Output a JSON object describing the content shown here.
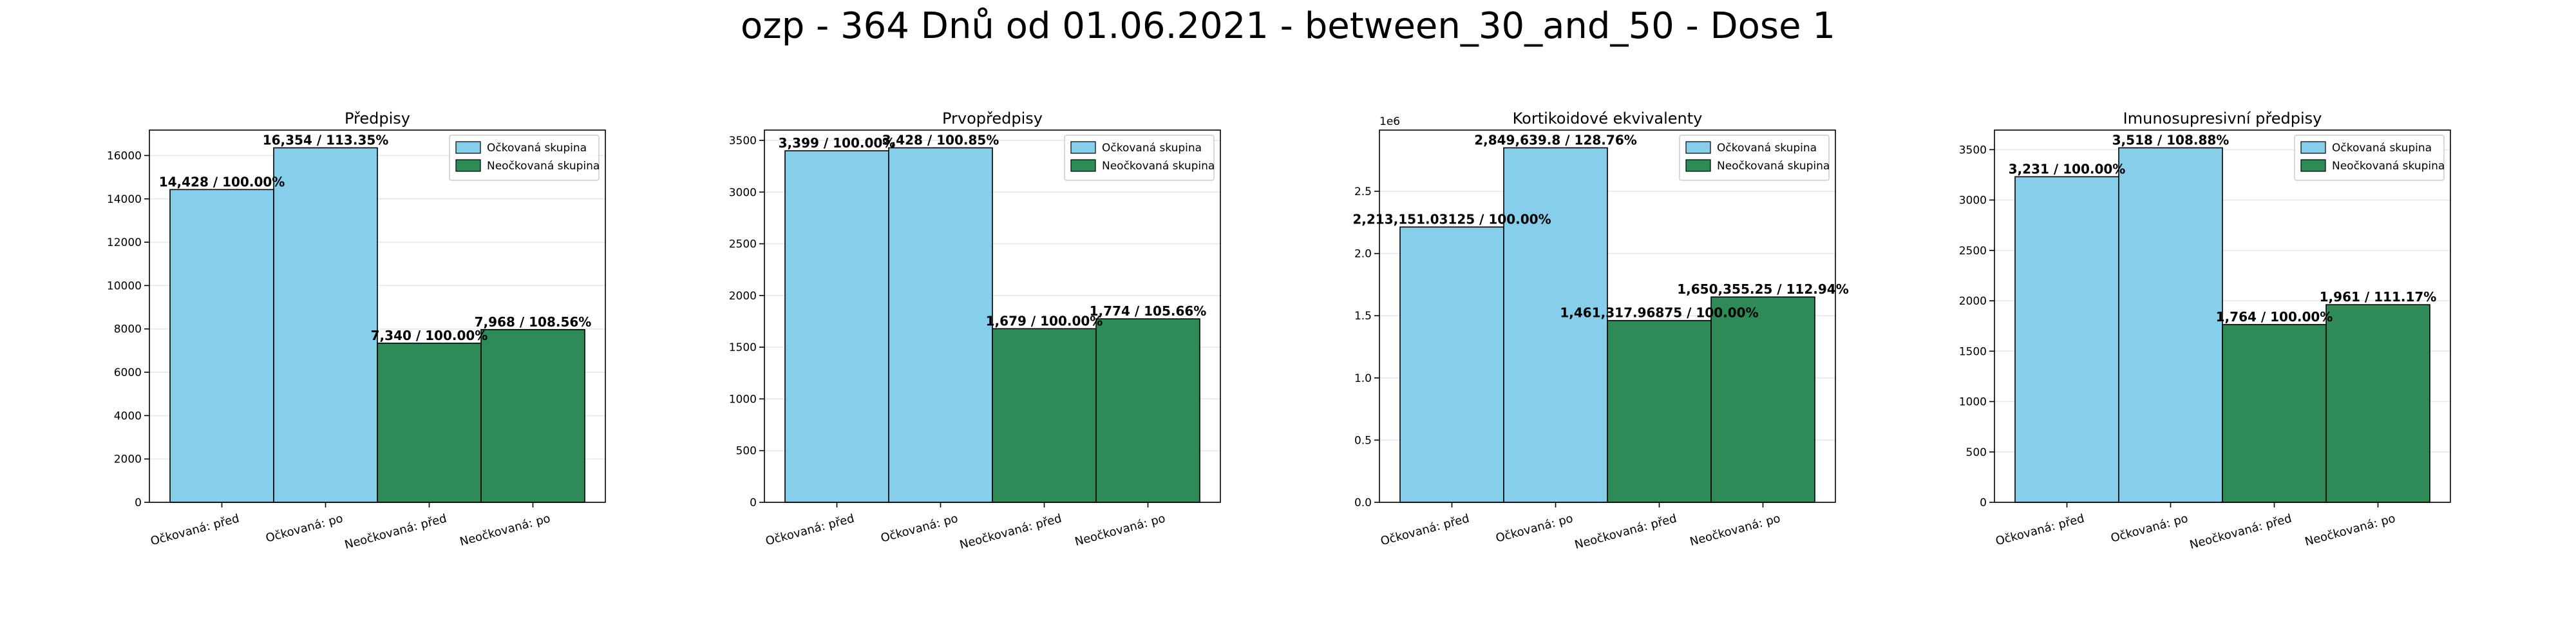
{
  "figure": {
    "title": "ozp - 364 Dnů od 01.06.2021 - between_30_and_50 - Dose 1"
  },
  "legend": {
    "items": [
      {
        "label": "Očkovaná skupina",
        "color": "#87CEEB"
      },
      {
        "label": "Neočkovaná skupina",
        "color": "#2E8B57"
      }
    ],
    "placement": "top-right"
  },
  "chart_data": [
    {
      "type": "bar",
      "title": "Předpisy",
      "categories": [
        "Očkovaná: před",
        "Očkovaná: po",
        "Neočkovaná: před",
        "Neočkovaná: po"
      ],
      "values": [
        14428,
        16354,
        7340,
        7968
      ],
      "value_labels": [
        "14,428 / 100.00%",
        "16,354 / 113.35%",
        "7,340 / 100.00%",
        "7,968 / 108.56%"
      ],
      "groups": [
        "vaccinated",
        "vaccinated",
        "unvaccinated",
        "unvaccinated"
      ],
      "ylim": [
        0,
        17171.7
      ],
      "yticks": [
        0,
        2000,
        4000,
        6000,
        8000,
        10000,
        12000,
        14000,
        16000
      ],
      "ytick_labels": [
        "0",
        "2000",
        "4000",
        "6000",
        "8000",
        "10000",
        "12000",
        "14000",
        "16000"
      ],
      "offset_label": "",
      "grid": true
    },
    {
      "type": "bar",
      "title": "Prvopředpisy",
      "categories": [
        "Očkovaná: před",
        "Očkovaná: po",
        "Neočkovaná: před",
        "Neočkovaná: po"
      ],
      "values": [
        3399,
        3428,
        1679,
        1774
      ],
      "value_labels": [
        "3,399 / 100.00%",
        "3,428 / 100.85%",
        "1,679 / 100.00%",
        "1,774 / 105.66%"
      ],
      "groups": [
        "vaccinated",
        "vaccinated",
        "unvaccinated",
        "unvaccinated"
      ],
      "ylim": [
        0,
        3599.4
      ],
      "yticks": [
        0,
        500,
        1000,
        1500,
        2000,
        2500,
        3000,
        3500
      ],
      "ytick_labels": [
        "0",
        "500",
        "1000",
        "1500",
        "2000",
        "2500",
        "3000",
        "3500"
      ],
      "offset_label": "",
      "grid": true
    },
    {
      "type": "bar",
      "title": "Kortikoidové ekvivalenty",
      "categories": [
        "Očkovaná: před",
        "Očkovaná: po",
        "Neočkovaná: před",
        "Neočkovaná: po"
      ],
      "values": [
        2213151.03125,
        2849639.8,
        1461317.96875,
        1650355.25
      ],
      "value_labels": [
        "2,213,151.03125 / 100.00%",
        "2,849,639.8 / 128.76%",
        "1,461,317.96875 / 100.00%",
        "1,650,355.25 / 112.94%"
      ],
      "groups": [
        "vaccinated",
        "vaccinated",
        "unvaccinated",
        "unvaccinated"
      ],
      "ylim": [
        0,
        2992121.8
      ],
      "yticks": [
        0,
        500000,
        1000000,
        1500000,
        2000000,
        2500000
      ],
      "ytick_labels": [
        "0.0",
        "0.5",
        "1.0",
        "1.5",
        "2.0",
        "2.5"
      ],
      "offset_label": "1e6",
      "grid": true
    },
    {
      "type": "bar",
      "title": "Imunosupresivní předpisy",
      "categories": [
        "Očkovaná: před",
        "Očkovaná: po",
        "Neočkovaná: před",
        "Neočkovaná: po"
      ],
      "values": [
        3231,
        3518,
        1764,
        1961
      ],
      "value_labels": [
        "3,231 / 100.00%",
        "3,518 / 108.88%",
        "1,764 / 100.00%",
        "1,961 / 111.17%"
      ],
      "groups": [
        "vaccinated",
        "vaccinated",
        "unvaccinated",
        "unvaccinated"
      ],
      "ylim": [
        0,
        3693.9
      ],
      "yticks": [
        0,
        500,
        1000,
        1500,
        2000,
        2500,
        3000,
        3500
      ],
      "ytick_labels": [
        "0",
        "500",
        "1000",
        "1500",
        "2000",
        "2500",
        "3000",
        "3500"
      ],
      "offset_label": "",
      "grid": true
    }
  ]
}
